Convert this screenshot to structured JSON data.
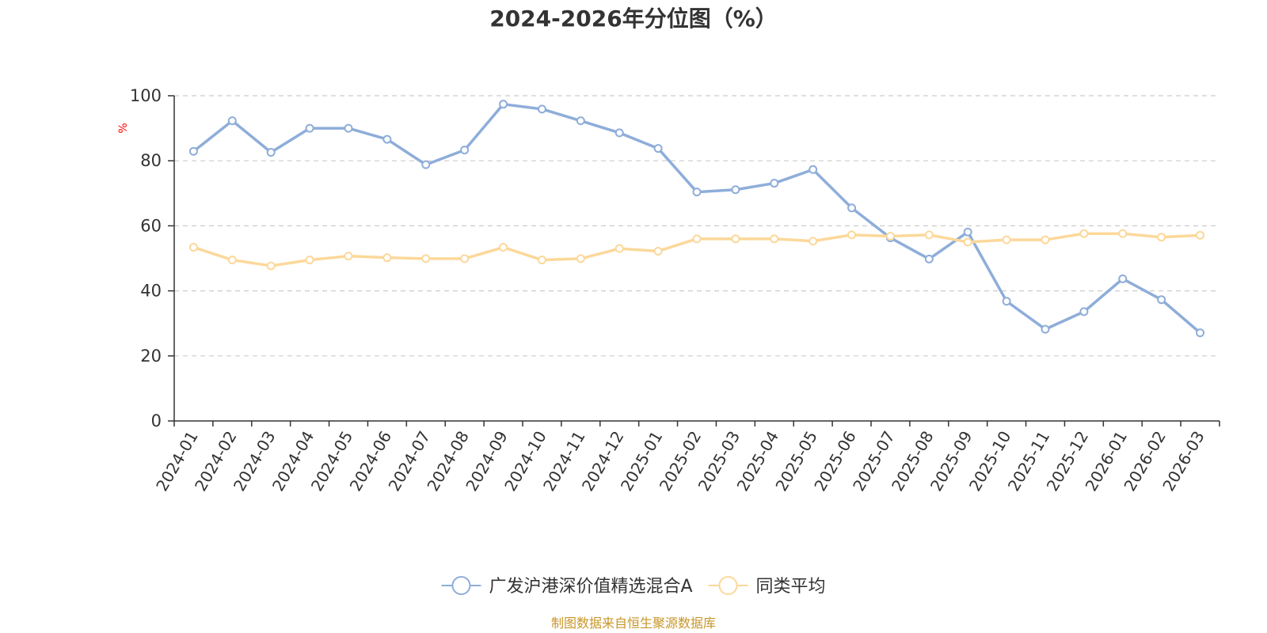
{
  "chart_data": {
    "type": "line",
    "title": "2024-2026年分位图（%）",
    "ylabel": "%",
    "ylim": [
      0,
      100
    ],
    "yticks": [
      "0",
      "20",
      "40",
      "60",
      "80",
      "100"
    ],
    "grid": true,
    "legend_position": "bottom",
    "x": [
      "2024-01",
      "2024-02",
      "2024-03",
      "2024-04",
      "2024-05",
      "2024-06",
      "2024-07",
      "2024-08",
      "2024-09",
      "2024-10",
      "2024-11",
      "2024-12",
      "2025-01",
      "2025-02",
      "2025-03",
      "2025-04",
      "2025-05",
      "2025-06",
      "2025-07",
      "2025-08",
      "2025-09",
      "2025-10",
      "2025-11",
      "2025-12",
      "2026-01",
      "2026-02",
      "2026-03"
    ],
    "series": [
      {
        "name": "广发沪港深价值精选混合A",
        "color": "#8eadd9",
        "values": [
          82.9,
          92.3,
          82.6,
          90.0,
          90.0,
          86.6,
          78.8,
          83.3,
          97.4,
          95.9,
          92.3,
          88.6,
          83.8,
          70.4,
          71.1,
          73.1,
          77.3,
          65.5,
          56.3,
          49.8,
          58.1,
          36.8,
          28.2,
          33.6,
          43.7,
          37.3,
          27.1
        ]
      },
      {
        "name": "同类平均",
        "color": "#fcd89a",
        "values": [
          53.4,
          49.5,
          47.7,
          49.5,
          50.7,
          50.2,
          49.9,
          49.9,
          53.4,
          49.5,
          49.9,
          53.0,
          52.2,
          56.0,
          56.0,
          56.0,
          55.3,
          57.2,
          56.8,
          57.2,
          55.0,
          55.7,
          55.7,
          57.6,
          57.6,
          56.5,
          57.1
        ]
      }
    ]
  },
  "source_text": "制图数据来自恒生聚源数据库",
  "colors": {
    "title": "#333333",
    "axis": "#333333",
    "grid": "#cccccc",
    "ylabel": "#ff0000",
    "source": "#c8962a"
  }
}
